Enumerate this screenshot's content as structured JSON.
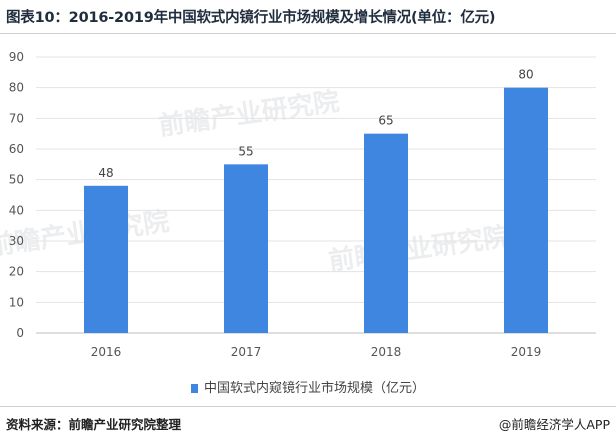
{
  "title": "图表10：2016-2019年中国软式内镜行业市场规模及增长情况(单位：亿元)",
  "source": "资料来源：前瞻产业研究院整理",
  "brand": "@前瞻经济学人APP",
  "watermark": "前瞻产业研究院",
  "colors": {
    "bar": "#3f86e0",
    "grid": "#e3e3e3",
    "axis": "#bfbfbf"
  },
  "chart_data": {
    "type": "bar",
    "title": "",
    "xlabel": "",
    "ylabel": "",
    "categories": [
      "2016",
      "2017",
      "2018",
      "2019"
    ],
    "series": [
      {
        "name": "中国软式内窥镜行业市场规模（亿元）",
        "values": [
          48,
          55,
          65,
          80
        ]
      }
    ],
    "ylim": [
      0,
      90
    ],
    "yticks": [
      0,
      10,
      20,
      30,
      40,
      50,
      60,
      70,
      80,
      90
    ],
    "data_labels": true,
    "grid": true,
    "legend": "bottom"
  }
}
